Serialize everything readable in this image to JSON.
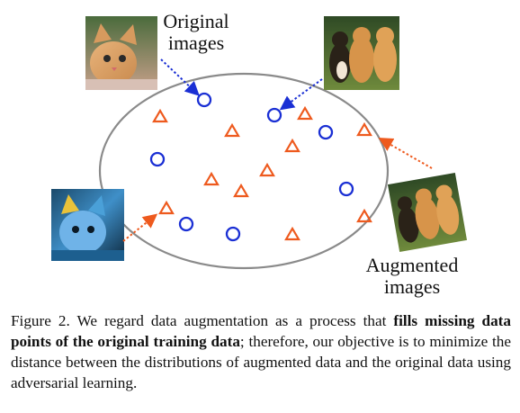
{
  "figure": {
    "label_original": [
      "Original",
      "images"
    ],
    "label_augmented": [
      "Augmented",
      "images"
    ],
    "images": [
      {
        "name": "original-kitten-photo"
      },
      {
        "name": "original-shiba-dogs-photo"
      },
      {
        "name": "augmented-kitten-color-jittered-photo"
      },
      {
        "name": "augmented-shiba-dogs-rotated-photo"
      }
    ],
    "colors": {
      "original_points": "#1a2fd4",
      "augmented_points": "#ee5a1e",
      "ellipse": "#8a8a8a",
      "arrow_original": "#1a2fd4",
      "arrow_augmented": "#ee5a1e"
    }
  },
  "caption": {
    "prefix": "Figure 2. We regard data augmentation as a process that ",
    "bold": "fills missing data points of the original training data",
    "suffix": "; therefore, our objective is to minimize the distance between the distributions of augmented data and the original data using adversarial learning."
  }
}
